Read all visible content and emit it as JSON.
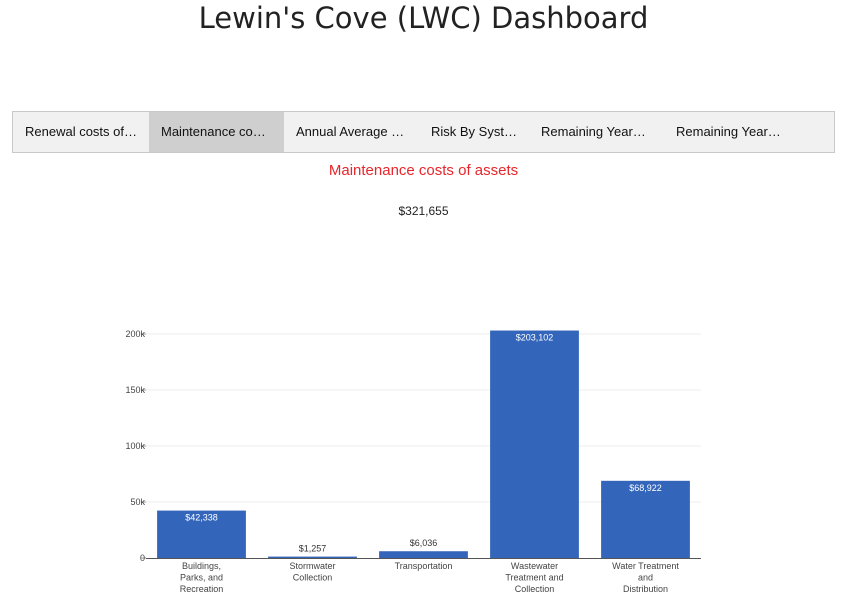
{
  "header": {
    "title": "Lewin's Cove (LWC) Dashboard"
  },
  "tabs": [
    {
      "label": "Renewal costs of ...",
      "active": false
    },
    {
      "label": "Maintenance cost...",
      "active": true
    },
    {
      "label": "Annual Average In...",
      "active": false
    },
    {
      "label": "Risk By System",
      "active": false
    },
    {
      "label": "Remaining Years ...",
      "active": false
    },
    {
      "label": "Remaining Years ...",
      "active": false
    }
  ],
  "panel": {
    "subtitle": "Maintenance costs of assets",
    "total": "$321,655"
  },
  "colors": {
    "bar": "#3366bb",
    "subtitle": "#e8262b"
  },
  "chart_data": {
    "type": "bar",
    "categories": [
      [
        "Buildings,",
        "Parks, and",
        "Recreation"
      ],
      [
        "Stormwater",
        "Collection"
      ],
      [
        "Transportation"
      ],
      [
        "Wastewater",
        "Treatment and",
        "Collection"
      ],
      [
        "Water Treatment",
        "and",
        "Distribution"
      ]
    ],
    "values": [
      42338,
      1257,
      6036,
      203102,
      68922
    ],
    "value_labels": [
      "$42,338",
      "$1,257",
      "$6,036",
      "$203,102",
      "$68,922"
    ],
    "yticks": [
      0,
      50000,
      100000,
      150000,
      200000
    ],
    "ytick_labels": [
      "0",
      "50k",
      "100k",
      "150k",
      "200k"
    ],
    "ylim": [
      0,
      200000
    ],
    "grid": true
  }
}
